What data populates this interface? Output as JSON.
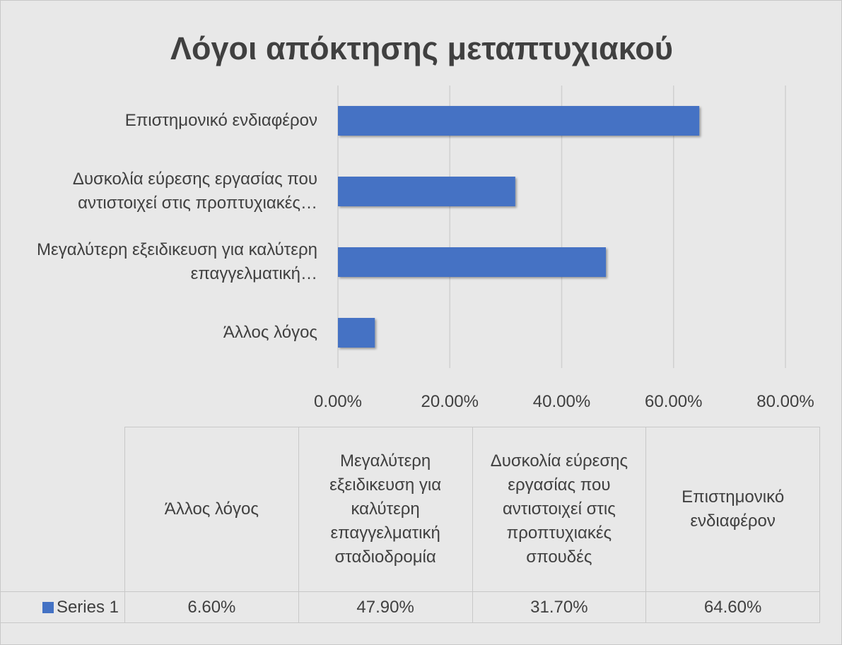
{
  "chart_data": {
    "type": "bar",
    "orientation": "horizontal",
    "title": "Λόγοι απόκτησης μεταπτυχιακού",
    "categories": [
      "Άλλος λόγος",
      "Μεγαλύτερη εξειδικευση για καλύτερη επαγγελματική σταδιοδρομία",
      "Δυσκολία εύρεσης εργασίας που αντιστοιχεί στις προπτυχιακές σπουδές",
      "Επιστημονικό ενδιαφέρον"
    ],
    "category_labels": [
      "Άλλος λόγος",
      "Μεγαλύτερη εξειδικευση για καλύτερη επαγγελματική…",
      "Δυσκολία εύρεσης εργασίας που αντιστοιχεί στις προπτυχιακές…",
      "Επιστημονικό ενδιαφέρον"
    ],
    "series": [
      {
        "name": "Series 1",
        "color": "#4472c4",
        "values": [
          6.6,
          47.9,
          31.7,
          64.6
        ],
        "value_labels": [
          "6.60%",
          "47.90%",
          "31.70%",
          "64.60%"
        ]
      }
    ],
    "xlim": [
      0,
      80
    ],
    "xticks": [
      {
        "value": 0,
        "label": "0.00%"
      },
      {
        "value": 20,
        "label": "20.00%"
      },
      {
        "value": 40,
        "label": "40.00%"
      },
      {
        "value": 60,
        "label": "60.00%"
      },
      {
        "value": 80,
        "label": "80.00%"
      }
    ],
    "grid": true,
    "data_table": true
  }
}
